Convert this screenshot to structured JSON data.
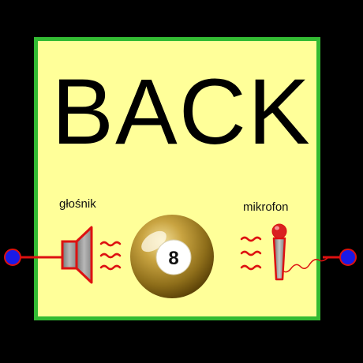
{
  "card": {
    "title": "BACK",
    "speaker_label": "głośnik",
    "microphone_label": "mikrofon",
    "ball_number": "8"
  },
  "icons": [
    "speaker-icon",
    "sound-waves-icon",
    "eight-ball-icon",
    "microphone-icon",
    "terminal-dot-icon"
  ],
  "colors": {
    "outer": "#000000",
    "panel": "#FFFF99",
    "panel_border": "#33BB33",
    "terminal_fill": "#1A1AE6",
    "terminal_stroke": "#DD1111",
    "wave": "#DD1111"
  }
}
